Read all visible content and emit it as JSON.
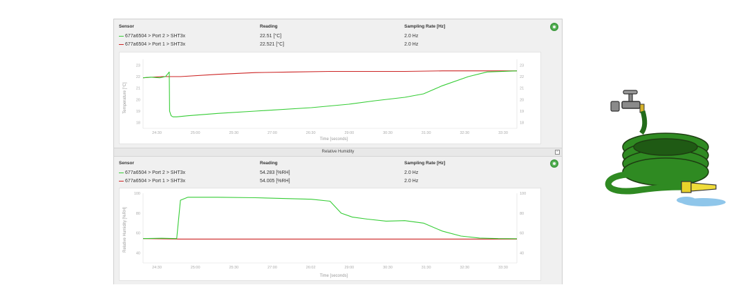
{
  "temperature_panel": {
    "headers": {
      "sensor": "Sensor",
      "reading": "Reading",
      "rate": "Sampling Rate [Hz]"
    },
    "rows": [
      {
        "sensor": "677a6504 > Port 2 > SHT3x",
        "reading": "22.51 [°C]",
        "rate": "2.0 Hz",
        "color": "#33cc33"
      },
      {
        "sensor": "677a6504 > Port 1 > SHT3x",
        "reading": "22.521 [°C]",
        "rate": "2.0 Hz",
        "color": "#cc2222"
      }
    ]
  },
  "divider": {
    "title": "Relative Humidity"
  },
  "humidity_panel": {
    "headers": {
      "sensor": "Sensor",
      "reading": "Reading",
      "rate": "Sampling Rate [Hz]"
    },
    "rows": [
      {
        "sensor": "677a6504 > Port 2 > SHT3x",
        "reading": "54.283 [%RH]",
        "rate": "2.0 Hz",
        "color": "#33cc33"
      },
      {
        "sensor": "677a6504 > Port 1 > SHT3x",
        "reading": "54.005 [%RH]",
        "rate": "2.0 Hz",
        "color": "#cc2222"
      }
    ]
  },
  "chart_data": [
    {
      "type": "line",
      "xlabel": "Time [seconds]",
      "ylabel": "Temperature [°C]",
      "x_ticks": [
        "24:30",
        "25:00",
        "25:30",
        "27:00",
        "26:30",
        "29:00",
        "30:30",
        "31:30",
        "32:30",
        "33:30"
      ],
      "y_ticks": [
        18,
        19,
        20,
        21,
        22,
        23
      ],
      "ylim": [
        17.5,
        23.5
      ],
      "grid": false,
      "series": [
        {
          "color": "#33cc33",
          "x": [
            0,
            0.02,
            0.045,
            0.06,
            0.07,
            0.071,
            0.075,
            0.08,
            0.09,
            0.12,
            0.2,
            0.3,
            0.45,
            0.55,
            0.62,
            0.7,
            0.75,
            0.8,
            0.87,
            0.92,
            1.0
          ],
          "y": [
            21.9,
            21.95,
            21.9,
            22.0,
            22.4,
            19.0,
            18.6,
            18.5,
            18.5,
            18.6,
            18.8,
            19.0,
            19.3,
            19.6,
            19.9,
            20.2,
            20.5,
            21.2,
            22.0,
            22.4,
            22.5
          ]
        },
        {
          "color": "#cc2222",
          "x": [
            0,
            0.05,
            0.1,
            0.2,
            0.3,
            0.4,
            0.5,
            0.6,
            0.7,
            0.8,
            0.9,
            1.0
          ],
          "y": [
            21.9,
            22.0,
            22.0,
            22.2,
            22.35,
            22.4,
            22.45,
            22.45,
            22.45,
            22.5,
            22.5,
            22.5
          ]
        }
      ]
    },
    {
      "type": "line",
      "xlabel": "Time [seconds]",
      "ylabel": "Relative Humidity [%RH]",
      "x_ticks": [
        "24:30",
        "25:00",
        "25:30",
        "27:00",
        "26:02",
        "29:00",
        "30:30",
        "31:30",
        "32:30",
        "33:30"
      ],
      "y_ticks": [
        40,
        60,
        80,
        100
      ],
      "ylim": [
        30,
        100
      ],
      "grid": false,
      "series": [
        {
          "color": "#33cc33",
          "x": [
            0,
            0.05,
            0.09,
            0.1,
            0.12,
            0.2,
            0.3,
            0.45,
            0.5,
            0.53,
            0.56,
            0.6,
            0.65,
            0.7,
            0.75,
            0.8,
            0.85,
            0.9,
            0.95,
            1.0
          ],
          "y": [
            54.5,
            54.8,
            54.5,
            93.0,
            96.0,
            96.0,
            95.5,
            94.0,
            92.0,
            80.0,
            76.0,
            74.0,
            72.0,
            72.5,
            70.0,
            62.0,
            57.0,
            55.0,
            54.5,
            54.3
          ]
        },
        {
          "color": "#cc2222",
          "x": [
            0,
            0.1,
            0.2,
            0.3,
            0.4,
            0.5,
            0.6,
            0.7,
            0.8,
            0.9,
            1.0
          ],
          "y": [
            54.5,
            54.0,
            54.0,
            54.0,
            54.0,
            54.0,
            54.0,
            54.0,
            54.0,
            54.0,
            54.0
          ]
        }
      ]
    }
  ]
}
